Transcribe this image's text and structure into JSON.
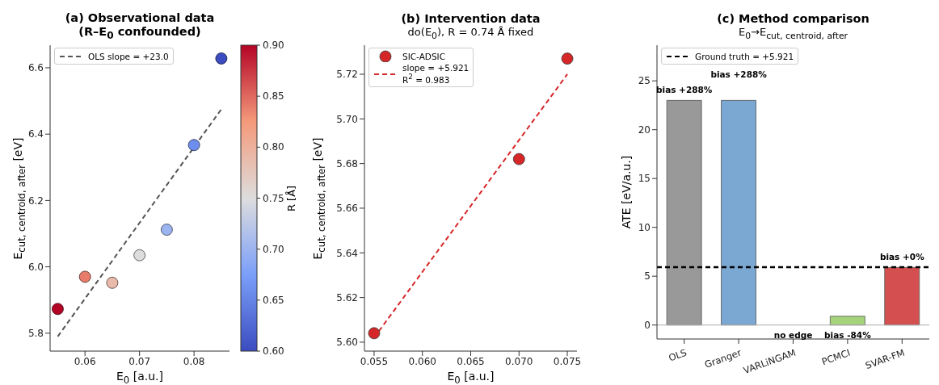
{
  "chart_data": [
    {
      "type": "scatter",
      "title": "(a) Observational data\n(R–E$_{0}$ confounded)",
      "xlabel": "E$_{0}$ [a.u.]",
      "ylabel": "E$_{cut, centroid, after}$ [eV]",
      "clabel": "R [Å]",
      "clim": [
        0.6,
        0.9
      ],
      "cticks": [
        {
          "value": 0.6,
          "label": "0.60"
        },
        {
          "value": 0.65,
          "label": "0.65"
        },
        {
          "value": 0.7,
          "label": "0.70"
        },
        {
          "value": 0.75,
          "label": "0.75"
        },
        {
          "value": 0.8,
          "label": "0.80"
        },
        {
          "value": 0.85,
          "label": "0.85"
        },
        {
          "value": 0.9,
          "label": "0.90"
        }
      ],
      "xlim": [
        0.0536,
        0.0865
      ],
      "xticks": [
        0.06,
        0.07,
        0.08
      ],
      "ylim": [
        5.746,
        6.668
      ],
      "yticks": [
        5.8,
        {
          "value": 6,
          "label": "6.0"
        },
        6.2,
        6.4,
        6.6
      ],
      "legend": "top left",
      "series": [
        {
          "x": [
            0.055,
            0.06,
            0.065,
            0.07,
            0.075,
            0.08,
            0.085
          ],
          "values": [
            5.873,
            5.97,
            5.952,
            6.035,
            6.112,
            6.367,
            6.628
          ],
          "marker": "circle",
          "cvalues": [
            0.9,
            0.84,
            0.79,
            0.75,
            0.7,
            0.66,
            0.6
          ],
          "colors": [
            "#b40426",
            "#e77c6a",
            "#e9b9a9",
            "#dddddd",
            "#9cb4f0",
            "#6e8eee",
            "#3b4cc0"
          ]
        },
        {
          "type": "line",
          "name": "OLS slope = +23.0",
          "color": "#555555",
          "line_style": "dashed",
          "x": [
            0.055,
            0.085
          ],
          "values": [
            5.79,
            6.475
          ],
          "marker": "none"
        }
      ]
    },
    {
      "type": "scatter",
      "title": "(b) Intervention data",
      "subtitle": "do(E$_{0}$), R = 0.74 Å fixed",
      "xlabel": "E$_{0}$ [a.u.]",
      "ylabel": "E$_{cut, centroid, after}$ [eV]",
      "xlim": [
        0.054,
        0.076
      ],
      "xticks": [
        0.055,
        {
          "value": 0.06,
          "label": "0.060"
        },
        0.065,
        {
          "value": 0.07,
          "label": "0.070"
        },
        0.075
      ],
      "ylim": [
        5.596,
        5.733
      ],
      "yticks": [
        {
          "value": 5.6,
          "label": "5.60"
        },
        5.62,
        5.64,
        5.66,
        5.68,
        {
          "value": 5.7,
          "label": "5.70"
        },
        5.72
      ],
      "legend": "top left",
      "series": [
        {
          "name": "SIC-ADSIC",
          "color": "#d62728",
          "x": [
            0.055,
            0.07,
            0.075
          ],
          "values": [
            5.604,
            5.682,
            5.727
          ],
          "marker": "circle"
        },
        {
          "type": "line",
          "name": "slope = +5.921\nR$^{2}$ = 0.983",
          "color": "#d62728",
          "line_style": "dashed",
          "x": [
            0.055,
            0.075
          ],
          "values": [
            5.602,
            5.72
          ],
          "marker": "none"
        }
      ]
    },
    {
      "type": "bar",
      "title": "(c) Method comparison",
      "subtitle": "E$_{0}$→E$_{cut, centroid, after}$",
      "ylabel": "ATE [eV/a.u.]",
      "categories": [
        "OLS",
        "Granger",
        "VARLiNGAM",
        "PCMCI",
        "SVAR-FM"
      ],
      "values": [
        23.0,
        23.0,
        0,
        0.9,
        5.9
      ],
      "colors": [
        "#999999",
        "#7ba7d3",
        "#999999",
        "#a6d27b",
        "#d45050"
      ],
      "annotations": [
        {
          "text": "bias +288%",
          "x": "OLS",
          "y": 23.0
        },
        {
          "text": "bias +288%",
          "x": "Granger",
          "y": 23.0
        },
        {
          "text": "no edge",
          "x": "VARLiNGAM",
          "y": 0
        },
        {
          "text": "bias -84%",
          "x": "PCMCI",
          "y": 0.9
        },
        {
          "text": "bias +0%",
          "x": "SVAR-FM",
          "y": 5.9
        }
      ],
      "ylim": [
        -1.43,
        28.65
      ],
      "yticks": [
        0,
        5,
        10,
        15,
        20,
        25
      ],
      "legend": "top left",
      "ref_lines": [
        {
          "axis": "y",
          "value": 5.921,
          "label": "Ground truth = +5.921",
          "color": "#000000",
          "line_style": "dashed"
        },
        {
          "axis": "y",
          "value": 0,
          "color": "#aaaaaa",
          "line_style": "solid"
        }
      ]
    }
  ]
}
